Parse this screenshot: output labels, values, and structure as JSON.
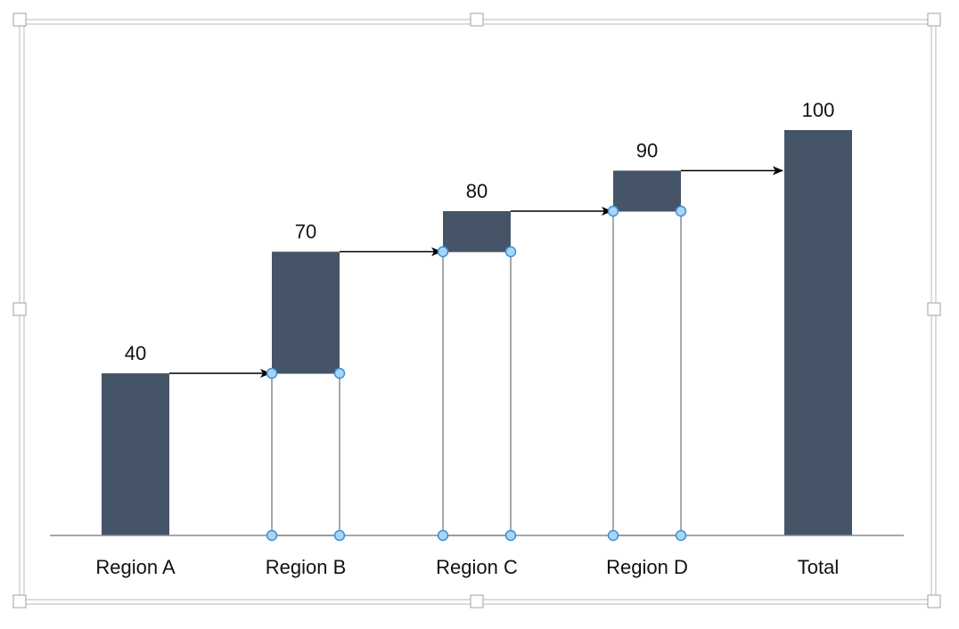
{
  "colors": {
    "bar": "#465468",
    "outline": "#8c8c8c",
    "axis": "#8c8c8c",
    "handle_fill": "#a8d4f5",
    "handle_stroke": "#3c8fd2",
    "arrow": "#000000",
    "frame": "#b9b9b9"
  },
  "chart_data": {
    "type": "bar",
    "title": "",
    "xlabel": "",
    "ylabel": "",
    "categories": [
      "Region A",
      "Region B",
      "Region C",
      "Region D",
      "Total"
    ],
    "series": [
      {
        "values": [
          40,
          70,
          80,
          90,
          100
        ],
        "bases": [
          0,
          40,
          70,
          80,
          0
        ],
        "data_labels": [
          "40",
          "70",
          "80",
          "90",
          "100"
        ]
      }
    ],
    "ylim": [
      0,
      100
    ],
    "grid": false,
    "legend": "none"
  }
}
